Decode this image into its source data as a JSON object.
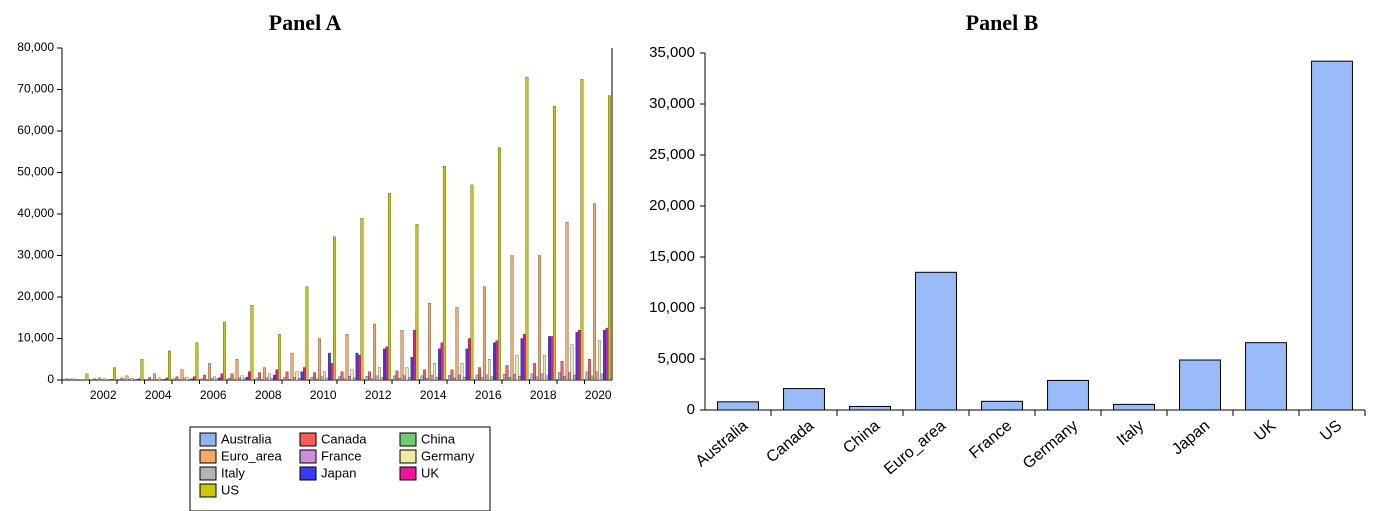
{
  "chart_data": [
    {
      "type": "grouped_bar",
      "title": "Panel A",
      "categories": [
        null,
        "2002",
        null,
        "2004",
        null,
        "2006",
        null,
        "2008",
        null,
        "2010",
        null,
        "2012",
        null,
        "2014",
        null,
        "2016",
        null,
        "2018",
        null,
        "2020"
      ],
      "ylim": [
        0,
        80000
      ],
      "yticks": [
        0,
        {
          "value": 10000,
          "label": "10,000"
        },
        {
          "value": 20000,
          "label": "20,000"
        },
        {
          "value": 30000,
          "label": "30,000"
        },
        {
          "value": 40000,
          "label": "40,000"
        },
        {
          "value": 50000,
          "label": "50,000"
        },
        {
          "value": 60000,
          "label": "60,000"
        },
        {
          "value": 70000,
          "label": "70,000"
        },
        {
          "value": 80000,
          "label": "80,000"
        }
      ],
      "legend": "below",
      "series": [
        {
          "name": "Australia",
          "color": "#8fb4f0",
          "values": [
            100,
            100,
            150,
            200,
            300,
            300,
            400,
            500,
            600,
            700,
            800,
            900,
            1000,
            1000,
            1100,
            1200,
            1400,
            1500,
            1800,
            2000
          ]
        },
        {
          "name": "Canada",
          "color": "#ff5a5a",
          "values": [
            300,
            300,
            500,
            600,
            800,
            1200,
            1500,
            1800,
            2000,
            1800,
            2000,
            2000,
            2200,
            2500,
            2500,
            3000,
            3500,
            4000,
            4500,
            5000
          ]
        },
        {
          "name": "China",
          "color": "#6fcf6f",
          "values": [
            0,
            0,
            0,
            50,
            50,
            100,
            100,
            150,
            200,
            250,
            300,
            350,
            400,
            450,
            500,
            600,
            700,
            800,
            900,
            1000
          ]
        },
        {
          "name": "Euro_area",
          "color": "#f5a868",
          "values": [
            300,
            500,
            1000,
            1500,
            2500,
            4000,
            5000,
            3000,
            6500,
            10000,
            11000,
            13500,
            12000,
            18500,
            17500,
            22500,
            30000,
            30000,
            38000,
            42500
          ]
        },
        {
          "name": "France",
          "color": "#cc8ee0",
          "values": [
            100,
            100,
            150,
            200,
            300,
            400,
            500,
            600,
            700,
            800,
            900,
            1000,
            1000,
            1100,
            1200,
            1300,
            1400,
            1500,
            1800,
            2000
          ]
        },
        {
          "name": "Germany",
          "color": "#eeee9e",
          "values": [
            200,
            300,
            400,
            500,
            700,
            800,
            1000,
            1500,
            2000,
            2000,
            2500,
            3000,
            3000,
            4000,
            4000,
            5000,
            6000,
            6000,
            8500,
            9500
          ]
        },
        {
          "name": "Italy",
          "color": "#b4b4b4",
          "values": [
            50,
            100,
            100,
            150,
            200,
            300,
            300,
            400,
            400,
            500,
            500,
            600,
            600,
            700,
            700,
            800,
            900,
            1000,
            1200,
            1500
          ]
        },
        {
          "name": "Japan",
          "color": "#3a3af5",
          "values": [
            50,
            100,
            150,
            200,
            300,
            500,
            700,
            1200,
            2000,
            6500,
            6500,
            7500,
            5500,
            7500,
            7500,
            9000,
            10000,
            10500,
            11500,
            12000
          ]
        },
        {
          "name": "UK",
          "color": "#f0129a",
          "values": [
            100,
            200,
            300,
            500,
            800,
            1500,
            2000,
            2500,
            3000,
            4000,
            6000,
            8000,
            12000,
            9000,
            10000,
            9500,
            11000,
            10500,
            12000,
            12500
          ]
        },
        {
          "name": "US",
          "color": "#c8c800",
          "values": [
            1500,
            3000,
            5000,
            7000,
            9000,
            14000,
            18000,
            11000,
            22500,
            34500,
            39000,
            45000,
            37500,
            51500,
            47000,
            56000,
            73000,
            66000,
            72500,
            68500
          ]
        }
      ]
    },
    {
      "type": "bar",
      "title": "Panel B",
      "categories": [
        "Australia",
        "Canada",
        "China",
        "Euro_area",
        "France",
        "Germany",
        "Italy",
        "Japan",
        "UK",
        "US"
      ],
      "values": [
        800,
        2100,
        350,
        13500,
        850,
        2900,
        550,
        4900,
        6600,
        34200
      ],
      "color": "#99bbf8",
      "ylim": [
        0,
        35000
      ],
      "yticks": [
        0,
        {
          "value": 5000,
          "label": "5,000"
        },
        {
          "value": 10000,
          "label": "10,000"
        },
        {
          "value": 15000,
          "label": "15,000"
        },
        {
          "value": 20000,
          "label": "20,000"
        },
        {
          "value": 25000,
          "label": "25,000"
        },
        {
          "value": 30000,
          "label": "30,000"
        },
        {
          "value": 35000,
          "label": "35,000"
        }
      ]
    }
  ]
}
